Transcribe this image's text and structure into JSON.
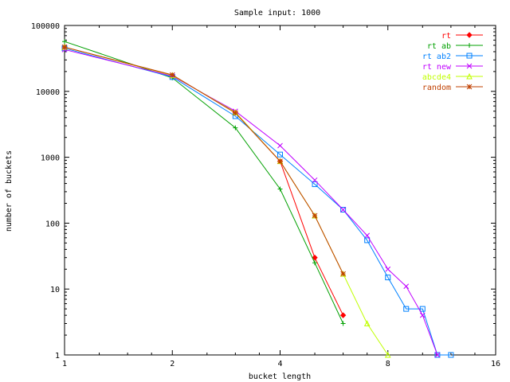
{
  "chart_data": {
    "type": "line",
    "title": "Sample input: 1000",
    "xlabel": "bucket length",
    "ylabel": "number of buckets",
    "x_scale": "log2",
    "y_scale": "log10",
    "xlim": [
      1,
      16
    ],
    "ylim": [
      1,
      100000
    ],
    "x_ticks": [
      1,
      2,
      4,
      8,
      16
    ],
    "x_tick_labels": [
      "1",
      "2",
      "4",
      "8",
      "16"
    ],
    "y_ticks": [
      1,
      10,
      100,
      1000,
      10000,
      100000
    ],
    "y_tick_labels": [
      "1",
      "10",
      "100",
      "1000",
      "10000",
      "100000"
    ],
    "grid": false,
    "legend_position": "top-right",
    "series": [
      {
        "name": "rt",
        "color": "#ff0000",
        "marker": "diamond",
        "x": [
          1,
          2,
          3,
          4,
          5,
          6
        ],
        "y": [
          47000,
          17500,
          4800,
          870,
          30,
          4
        ]
      },
      {
        "name": "rt ab",
        "color": "#00a000",
        "marker": "plus",
        "x": [
          1,
          2,
          3,
          4,
          5,
          6
        ],
        "y": [
          57000,
          16000,
          2800,
          330,
          25,
          3
        ]
      },
      {
        "name": "rt ab2",
        "color": "#0080ff",
        "marker": "square",
        "x": [
          1,
          2,
          3,
          4,
          5,
          6,
          7,
          8,
          9,
          10,
          11,
          12
        ],
        "y": [
          45000,
          16500,
          4200,
          1100,
          390,
          160,
          55,
          15,
          5,
          5,
          1,
          1
        ]
      },
      {
        "name": "rt new",
        "color": "#c000ff",
        "marker": "x",
        "x": [
          1,
          2,
          3,
          4,
          5,
          6,
          7,
          8,
          9,
          10,
          11
        ],
        "y": [
          43000,
          17000,
          5000,
          1500,
          450,
          160,
          65,
          20,
          11,
          4,
          1
        ]
      },
      {
        "name": "abcde4",
        "color": "#c0ff00",
        "marker": "triangle",
        "x": [
          1,
          2,
          3,
          4,
          5,
          6,
          7,
          8
        ],
        "y": [
          47000,
          17500,
          4800,
          870,
          130,
          17,
          3,
          1
        ]
      },
      {
        "name": "random",
        "color": "#c04000",
        "marker": "star",
        "x": [
          1,
          2,
          3,
          4,
          5,
          6
        ],
        "y": [
          47000,
          17800,
          4700,
          870,
          130,
          17
        ]
      }
    ]
  }
}
